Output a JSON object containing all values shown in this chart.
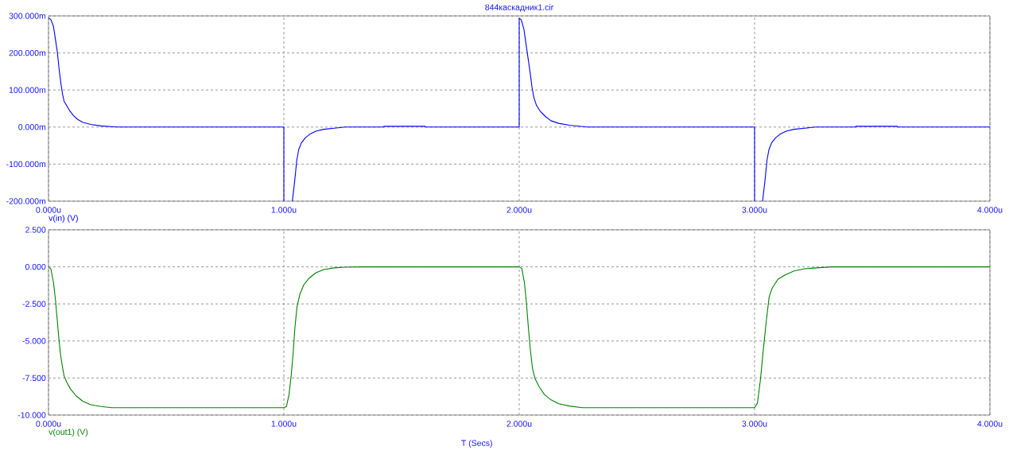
{
  "chart_data": [
    {
      "type": "line",
      "title": "844каскадник1.cir",
      "xlim": [
        0,
        4
      ],
      "xticks": [
        {
          "value": 0,
          "label": "0.000u"
        },
        {
          "value": 1,
          "label": "1.000u"
        },
        {
          "value": 2,
          "label": "2.000u"
        },
        {
          "value": 3,
          "label": "3.000u"
        },
        {
          "value": 4,
          "label": "4.000u"
        }
      ],
      "ylim": [
        -200,
        300
      ],
      "yticks": [
        {
          "value": -200,
          "label": "-200.000m"
        },
        {
          "value": -100,
          "label": "-100.000m"
        },
        {
          "value": 0,
          "label": "0.000m"
        },
        {
          "value": 100,
          "label": "100.000m"
        },
        {
          "value": 200,
          "label": "200.000m"
        },
        {
          "value": 300,
          "label": "300.000m"
        }
      ],
      "grid": true,
      "legend": "bottom left",
      "series": [
        {
          "name": "v(in) (V)",
          "color": "#0000ff",
          "x": [
            0,
            0.01,
            0.021,
            0.033,
            0.038,
            0.046,
            0.053,
            0.06,
            0.066,
            0.076,
            0.089,
            0.106,
            0.123,
            0.145,
            0.179,
            0.224,
            0.29,
            1.0,
            1.0,
            1.02,
            1.036,
            1.046,
            1.055,
            1.063,
            1.074,
            1.091,
            1.113,
            1.136,
            1.169,
            1.214,
            1.26,
            1.425,
            1.425,
            1.6,
            1.6,
            2.0,
            2.0,
            2.009,
            2.02,
            2.031,
            2.039,
            2.047,
            2.054,
            2.062,
            2.073,
            2.09,
            2.112,
            2.135,
            2.168,
            2.213,
            2.29,
            3.0,
            3.0,
            3.02,
            3.034,
            3.044,
            3.053,
            3.061,
            3.072,
            3.089,
            3.111,
            3.134,
            3.167,
            3.212,
            3.26,
            3.43,
            3.43,
            3.606,
            3.606,
            4.0
          ],
          "values": [
            295,
            290,
            272,
            222,
            200,
            151,
            116,
            88,
            70,
            59,
            45,
            31,
            21,
            13,
            7,
            3,
            0,
            0,
            -200,
            null,
            -200,
            -146,
            -89,
            -61,
            -43,
            -29,
            -18,
            -11,
            -6,
            -3,
            0,
            0,
            2,
            2,
            0,
            0,
            294,
            289,
            264,
            215,
            180,
            144,
            109,
            81,
            59,
            42,
            28,
            17,
            10,
            5,
            0,
            0,
            -200,
            null,
            -200,
            -146,
            -89,
            -61,
            -43,
            -29,
            -18,
            -11,
            -6,
            -3,
            0,
            0,
            2,
            2,
            0,
            0
          ]
        }
      ]
    },
    {
      "type": "line",
      "xlabel": "T (Secs)",
      "xlim": [
        0,
        4
      ],
      "xticks": [
        {
          "value": 0,
          "label": "0.000u"
        },
        {
          "value": 1,
          "label": "1.000u"
        },
        {
          "value": 2,
          "label": "2.000u"
        },
        {
          "value": 3,
          "label": "3.000u"
        },
        {
          "value": 4,
          "label": "4.000u"
        }
      ],
      "ylim": [
        -10,
        2.5
      ],
      "yticks": [
        {
          "value": -10,
          "label": "-10.000"
        },
        {
          "value": -7.5,
          "label": "-7.500"
        },
        {
          "value": -5,
          "label": "-5.000"
        },
        {
          "value": -2.5,
          "label": "-2.500"
        },
        {
          "value": 0,
          "label": "0.000"
        },
        {
          "value": 2.5,
          "label": "2.500"
        }
      ],
      "grid": true,
      "legend": "bottom left",
      "series": [
        {
          "name": "v(out1) (V)",
          "color": "#008000",
          "x": [
            0,
            0.01,
            0.021,
            0.029,
            0.036,
            0.044,
            0.051,
            0.058,
            0.066,
            0.078,
            0.094,
            0.117,
            0.145,
            0.179,
            0.224,
            0.269,
            1.0,
            1.011,
            1.022,
            1.031,
            1.039,
            1.047,
            1.056,
            1.068,
            1.084,
            1.107,
            1.135,
            1.169,
            1.214,
            1.259,
            1.326,
            2.0,
            2.011,
            2.022,
            2.031,
            2.039,
            2.047,
            2.056,
            2.067,
            2.084,
            2.107,
            2.135,
            2.168,
            2.213,
            2.269,
            3.0,
            3.012,
            3.025,
            3.037,
            3.05,
            3.062,
            3.075,
            3.099,
            3.13,
            3.168,
            3.217,
            3.329,
            4.0
          ],
          "values": [
            0,
            -0.14,
            -1.04,
            -2.13,
            -3.39,
            -4.83,
            -5.91,
            -6.63,
            -7.35,
            -7.8,
            -8.25,
            -8.7,
            -9.06,
            -9.3,
            -9.42,
            -9.5,
            -9.5,
            -9.42,
            -8.61,
            -7.35,
            -5.91,
            -4.11,
            -2.67,
            -1.86,
            -1.23,
            -0.77,
            -0.41,
            -0.18,
            -0.07,
            -0.02,
            0,
            0,
            -0.11,
            -1.04,
            -2.49,
            -4.11,
            -5.55,
            -6.81,
            -7.53,
            -8.07,
            -8.61,
            -8.97,
            -9.24,
            -9.39,
            -9.5,
            -9.5,
            -9.2,
            -7.61,
            -5.62,
            -3.63,
            -2.03,
            -1.43,
            -0.84,
            -0.54,
            -0.28,
            -0.12,
            0,
            0
          ]
        }
      ]
    }
  ]
}
